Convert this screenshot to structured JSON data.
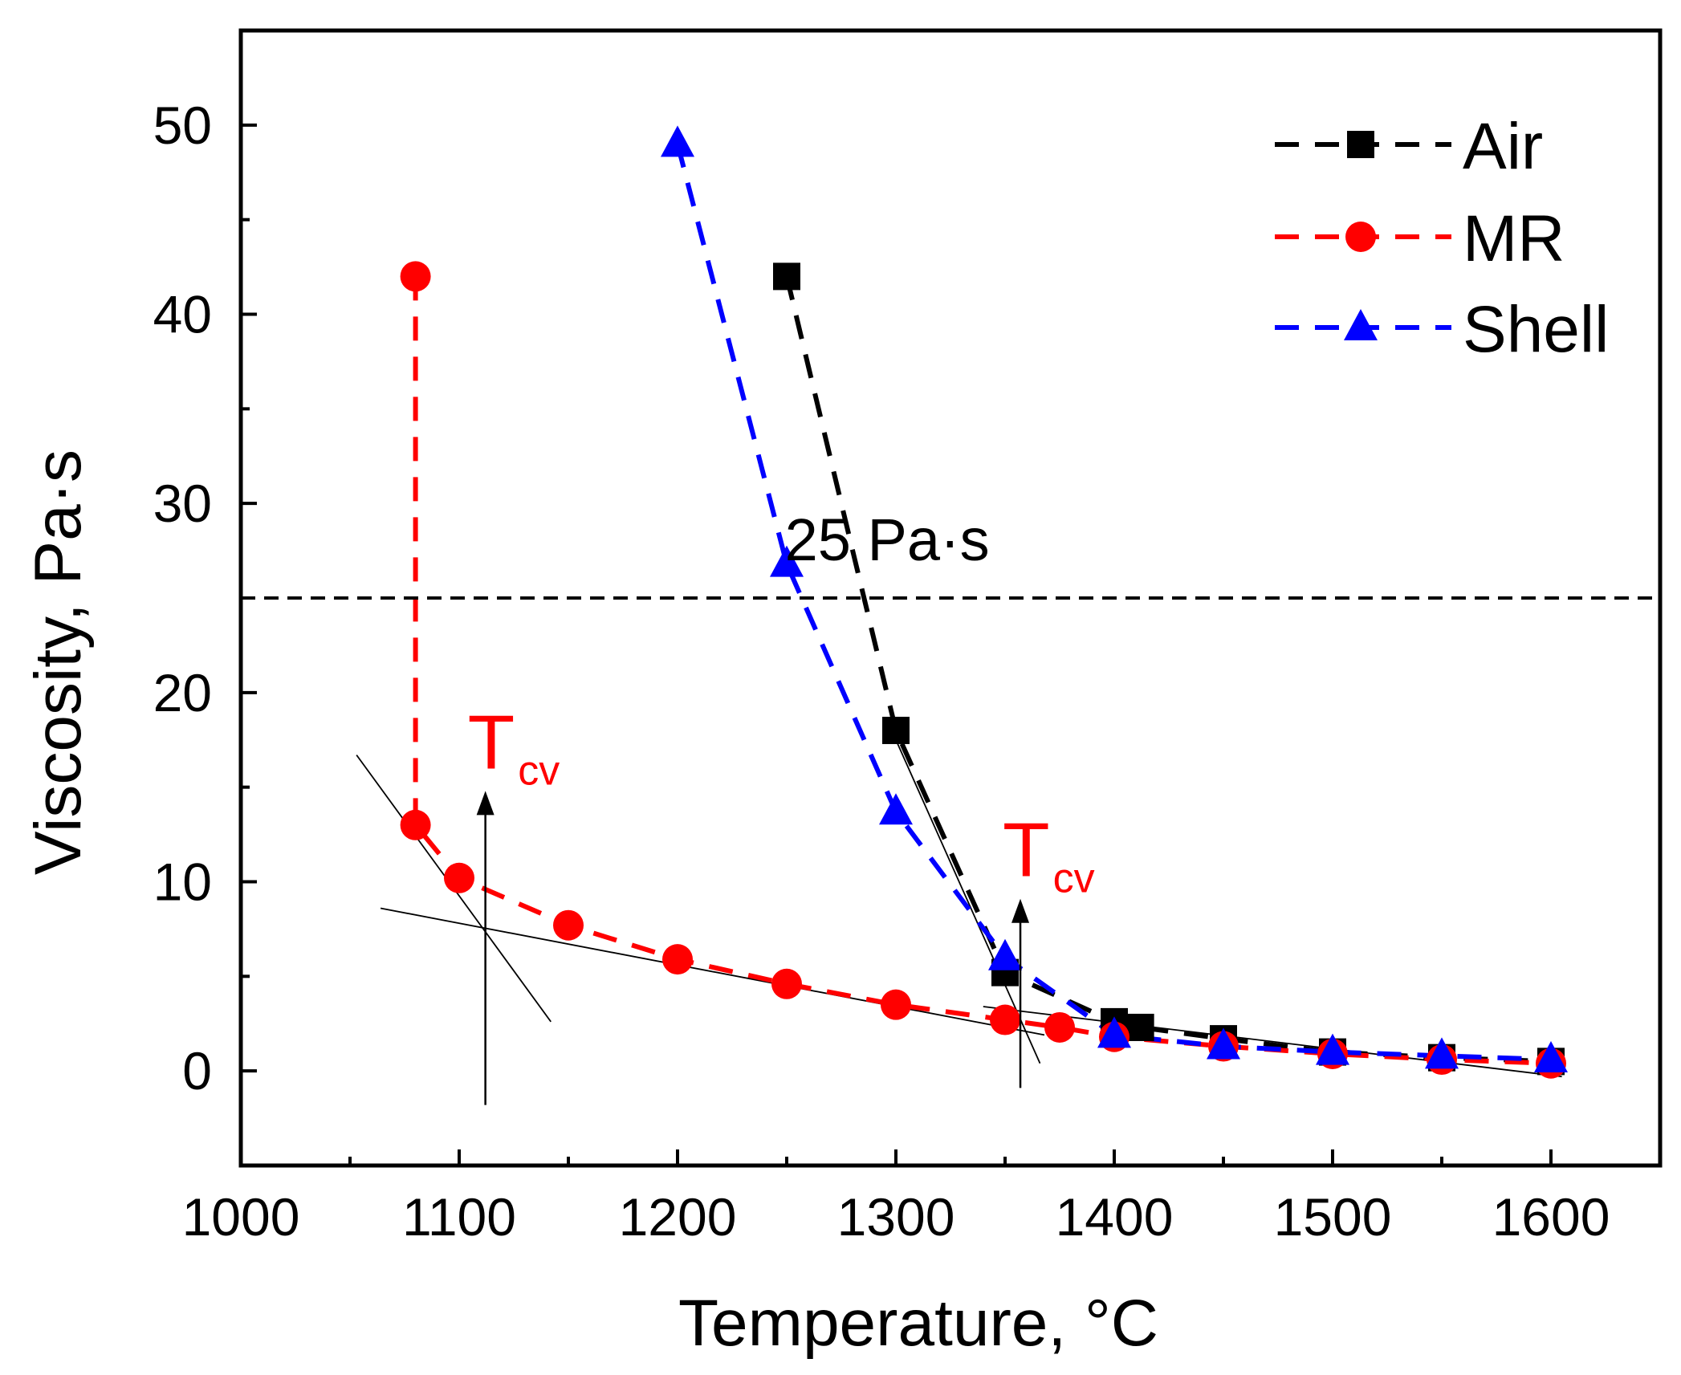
{
  "chart_data": {
    "type": "line",
    "title": "",
    "xlabel": "Temperature, ",
    "xlabel_unit": "°C",
    "ylabel": "Viscosity, Pa·s",
    "xlim": [
      1000,
      1650
    ],
    "ylim": [
      -5,
      55
    ],
    "x_ticks": [
      1000,
      1100,
      1200,
      1300,
      1400,
      1500,
      1600
    ],
    "y_ticks": [
      0,
      10,
      20,
      30,
      40,
      50
    ],
    "grid": false,
    "legend_position": "top-right",
    "series": [
      {
        "name": "Air",
        "color": "#000000",
        "marker": "square",
        "x": [
          1250,
          1300,
          1350,
          1400,
          1412,
          1450,
          1500,
          1550,
          1600
        ],
        "y": [
          42,
          18,
          5.2,
          2.6,
          2.3,
          1.7,
          1.0,
          0.7,
          0.5
        ]
      },
      {
        "name": "MR",
        "color": "#ff0000",
        "marker": "circle",
        "x": [
          1080,
          1080,
          1100,
          1150,
          1200,
          1250,
          1300,
          1350,
          1375,
          1400,
          1450,
          1500,
          1550,
          1600
        ],
        "y": [
          42,
          13,
          10.2,
          7.7,
          5.9,
          4.6,
          3.5,
          2.7,
          2.3,
          1.8,
          1.3,
          0.9,
          0.6,
          0.4
        ]
      },
      {
        "name": "Shell",
        "color": "#0000ff",
        "marker": "triangle",
        "x": [
          1200,
          1250,
          1300,
          1350,
          1400,
          1450,
          1500,
          1550,
          1600
        ],
        "y": [
          49,
          26.8,
          13.7,
          6.0,
          1.9,
          1.3,
          1.0,
          0.8,
          0.6
        ]
      }
    ],
    "reference_line": {
      "y": 25,
      "label": "25 Pa·s"
    },
    "annotations": [
      {
        "text": "T",
        "subscript": "cv",
        "color": "#ff0000",
        "arrow_x": 1112,
        "arrow_from_y": -1.8,
        "arrow_to_y": 14.8
      },
      {
        "text": "T",
        "subscript": "cv",
        "color": "#ff0000",
        "arrow_x": 1357,
        "arrow_from_y": -0.9,
        "arrow_to_y": 9.1
      }
    ],
    "tangent_lines": [
      {
        "from": [
          1053,
          16.7
        ],
        "to": [
          1142,
          2.6
        ]
      },
      {
        "from": [
          1064,
          8.6
        ],
        "to": [
          1368,
          1.9
        ]
      },
      {
        "from": [
          1300,
          17.5
        ],
        "to": [
          1366,
          0.4
        ]
      },
      {
        "from": [
          1340,
          3.4
        ],
        "to": [
          1605,
          -0.3
        ]
      }
    ]
  }
}
